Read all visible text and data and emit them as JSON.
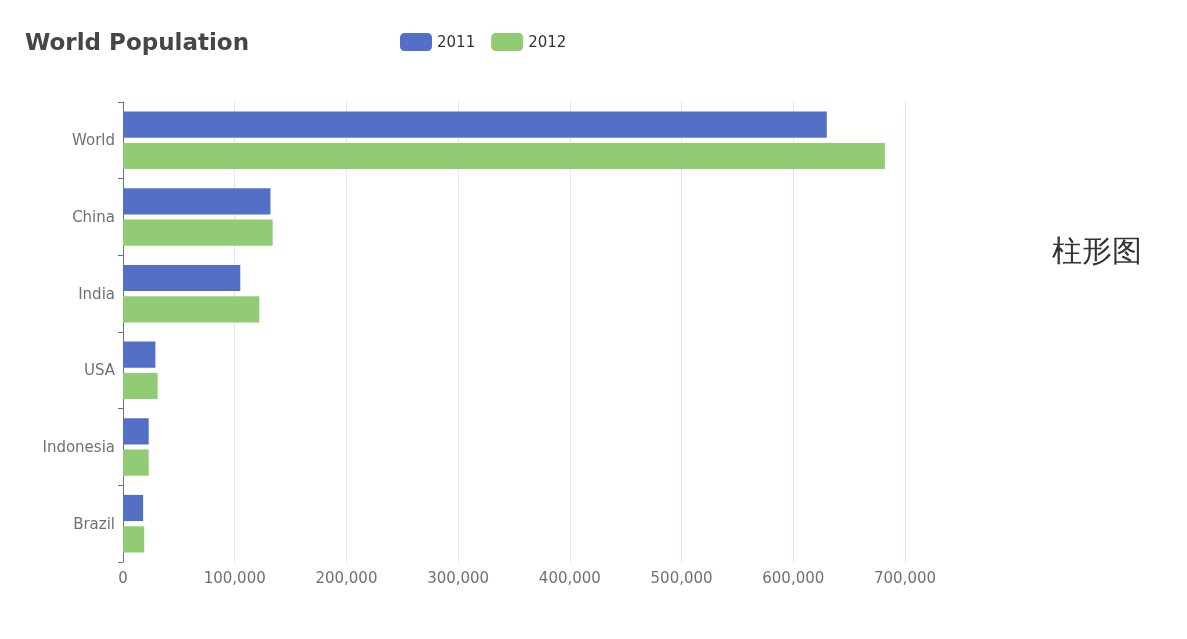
{
  "chart_data": {
    "type": "bar",
    "orientation": "horizontal",
    "title": "World Population",
    "categories": [
      "World",
      "China",
      "India",
      "USA",
      "Indonesia",
      "Brazil"
    ],
    "series": [
      {
        "name": "2011",
        "color": "#5470c6",
        "values": [
          630000,
          132000,
          105000,
          29000,
          23000,
          18000
        ]
      },
      {
        "name": "2012",
        "color": "#91cc75",
        "values": [
          682000,
          134000,
          122000,
          31000,
          23000,
          19000
        ]
      }
    ],
    "xlim": [
      0,
      700000
    ],
    "xticks": [
      0,
      {
        "value": 100000,
        "label": "100,000"
      },
      {
        "value": 200000,
        "label": "200,000"
      },
      {
        "value": 300000,
        "label": "300,000"
      },
      {
        "value": 400000,
        "label": "400,000"
      },
      {
        "value": 500000,
        "label": "500,000"
      },
      {
        "value": 600000,
        "label": "600,000"
      },
      {
        "value": 700000,
        "label": "700,000"
      }
    ],
    "grid": "x",
    "legend": "top",
    "annotations": [
      "柱形图"
    ]
  }
}
